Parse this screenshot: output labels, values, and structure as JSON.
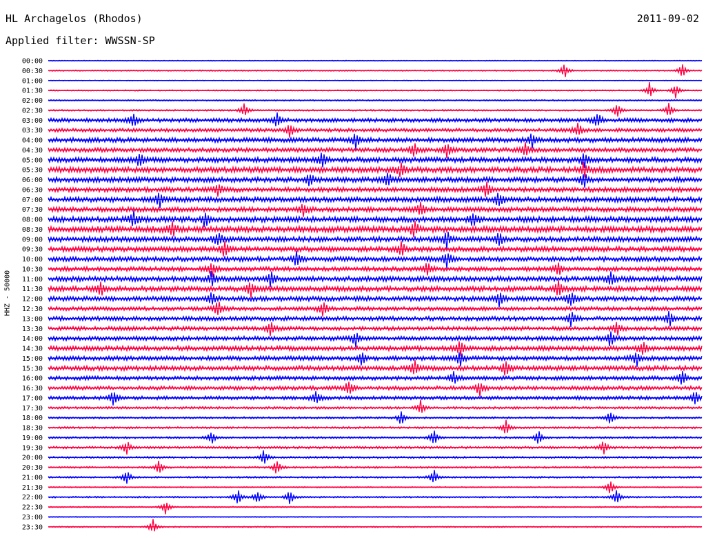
{
  "header": {
    "station": "HL Archagelos (Rhodos)",
    "date": "2011-09-02",
    "filter": "Applied filter: WWSSN-SP"
  },
  "chart_data": {
    "type": "line",
    "title": "HL Archagelos (Rhodos)",
    "subtitle": "Applied filter: WWSSN-SP",
    "ylabel": "HHZ - 50000",
    "xlabel": "",
    "series_colors": [
      "#0000ff",
      "#ff0040"
    ],
    "row_labels": [
      "00:00",
      "00:30",
      "01:00",
      "01:30",
      "02:00",
      "02:30",
      "03:00",
      "03:30",
      "04:00",
      "04:30",
      "05:00",
      "05:30",
      "06:00",
      "06:30",
      "07:00",
      "07:30",
      "08:00",
      "08:30",
      "09:00",
      "09:30",
      "10:00",
      "10:30",
      "11:00",
      "11:30",
      "12:00",
      "12:30",
      "13:00",
      "13:30",
      "14:00",
      "14:30",
      "15:00",
      "15:30",
      "16:00",
      "16:30",
      "17:00",
      "17:30",
      "18:00",
      "18:30",
      "19:00",
      "19:30",
      "20:00",
      "20:30",
      "21:00",
      "21:30",
      "22:00",
      "22:30",
      "23:00",
      "23:30"
    ],
    "noise_level": [
      0.4,
      0.6,
      0.4,
      0.6,
      0.7,
      0.8,
      2.0,
      1.8,
      2.4,
      2.2,
      2.6,
      2.8,
      2.6,
      2.4,
      2.6,
      2.4,
      2.8,
      3.0,
      2.6,
      2.6,
      2.4,
      2.2,
      2.6,
      2.6,
      2.4,
      2.0,
      2.2,
      2.0,
      2.2,
      2.4,
      2.2,
      2.4,
      2.0,
      2.0,
      1.8,
      1.2,
      1.0,
      1.0,
      1.0,
      1.2,
      1.0,
      0.9,
      0.9,
      0.6,
      0.8,
      0.6,
      0.4,
      0.6
    ],
    "events": [
      [],
      [
        0.79,
        0.97
      ],
      [],
      [
        0.96,
        0.92
      ],
      [],
      [
        0.3,
        0.95,
        0.87
      ],
      [
        0.13,
        0.35,
        0.84
      ],
      [
        0.37,
        0.81
      ],
      [
        0.47,
        0.74
      ],
      [
        0.56,
        0.61,
        0.73
      ],
      [
        0.14,
        0.42,
        0.82
      ],
      [
        0.54,
        0.82
      ],
      [
        0.4,
        0.52,
        0.82
      ],
      [
        0.26,
        0.67
      ],
      [
        0.17,
        0.69
      ],
      [
        0.57,
        0.39
      ],
      [
        0.13,
        0.24,
        0.65
      ],
      [
        0.19,
        0.56
      ],
      [
        0.26,
        0.61,
        0.69
      ],
      [
        0.54,
        0.27
      ],
      [
        0.61,
        0.38
      ],
      [
        0.25,
        0.58,
        0.78
      ],
      [
        0.25,
        0.34,
        0.86
      ],
      [
        0.08,
        0.31,
        0.78
      ],
      [
        0.25,
        0.69,
        0.8
      ],
      [
        0.26,
        0.42
      ],
      [
        0.8,
        0.95
      ],
      [
        0.34,
        0.87
      ],
      [
        0.47,
        0.86
      ],
      [
        0.63,
        0.91
      ],
      [
        0.48,
        0.63,
        0.9
      ],
      [
        0.56,
        0.7
      ],
      [
        0.62,
        0.97
      ],
      [
        0.46,
        0.66
      ],
      [
        0.1,
        0.41,
        0.99
      ],
      [
        0.57
      ],
      [
        0.54,
        0.86
      ],
      [
        0.7
      ],
      [
        0.25,
        0.59,
        0.75
      ],
      [
        0.12,
        0.85
      ],
      [
        0.33
      ],
      [
        0.17,
        0.35
      ],
      [
        0.12,
        0.59
      ],
      [
        0.86
      ],
      [
        0.29,
        0.32,
        0.37,
        0.87
      ],
      [
        0.18
      ],
      [],
      [
        0.16
      ]
    ]
  }
}
